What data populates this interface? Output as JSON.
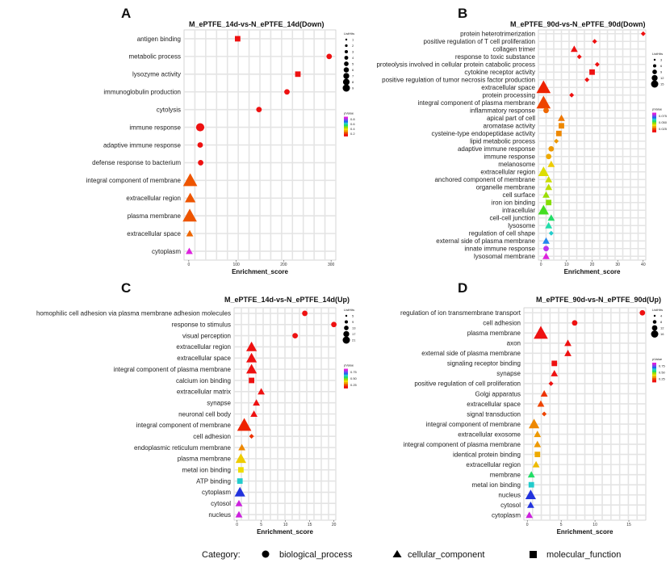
{
  "legend": {
    "category_label": "Category:",
    "items": [
      {
        "name": "biological_process",
        "shape": "circle"
      },
      {
        "name": "cellular_component",
        "shape": "triangle"
      },
      {
        "name": "molecular_function",
        "shape": "square"
      }
    ]
  },
  "chart_data": [
    {
      "panel": "A",
      "type": "scatter",
      "title": "M_ePTFE_14d-vs-N_ePTFE_14d(Down)",
      "xlabel": "Enrichment_score",
      "xlim": [
        -10,
        310
      ],
      "xticks": [
        0,
        100,
        200,
        300
      ],
      "size_title": "ListHits",
      "color_title": "pValue",
      "color_ticks": [
        "0.8",
        "0.6",
        "0.4",
        "0.2"
      ],
      "size_ticks": [
        "1",
        "2",
        "3",
        "4",
        "5",
        "6",
        "7",
        "8",
        "9"
      ],
      "terms": [
        {
          "label": "antigen binding",
          "x": 103,
          "shape": "square",
          "size": 1,
          "color": "#ee1111"
        },
        {
          "label": "metabolic process",
          "x": 296,
          "shape": "circle",
          "size": 1,
          "color": "#ee1111"
        },
        {
          "label": "lysozyme activity",
          "x": 230,
          "shape": "square",
          "size": 1,
          "color": "#ee1111"
        },
        {
          "label": "immunoglobulin production",
          "x": 207,
          "shape": "circle",
          "size": 1,
          "color": "#ee1111"
        },
        {
          "label": "cytolysis",
          "x": 148,
          "shape": "circle",
          "size": 1,
          "color": "#ee1111"
        },
        {
          "label": "immune response",
          "x": 24,
          "shape": "circle",
          "size": 2,
          "color": "#ee1111"
        },
        {
          "label": "adaptive immune response",
          "x": 24,
          "shape": "circle",
          "size": 1,
          "color": "#ee1111"
        },
        {
          "label": "defense response to bacterium",
          "x": 25,
          "shape": "circle",
          "size": 1,
          "color": "#ee1111"
        },
        {
          "label": "integral component of membrane",
          "x": 3,
          "shape": "triangle",
          "size": 3,
          "color": "#ee5500"
        },
        {
          "label": "extracellular region",
          "x": 3,
          "shape": "triangle",
          "size": 2,
          "color": "#ee5500"
        },
        {
          "label": "plasma membrane",
          "x": 2,
          "shape": "triangle",
          "size": 3,
          "color": "#ee5500"
        },
        {
          "label": "extracellular space",
          "x": 2,
          "shape": "triangle",
          "size": 1,
          "color": "#ee6600"
        },
        {
          "label": "cytoplasm",
          "x": 1,
          "shape": "triangle",
          "size": 1,
          "color": "#dd22dd"
        }
      ]
    },
    {
      "panel": "B",
      "type": "scatter",
      "title": "M_ePTFE_90d-vs-N_ePTFE_90d(Down)",
      "xlabel": "Enrichment_score",
      "xlim": [
        -1,
        41
      ],
      "xticks": [
        0,
        10,
        20,
        30,
        40
      ],
      "size_title": "ListHits",
      "color_title": "pValue",
      "color_ticks": [
        "0.075",
        "0.050",
        "0.025"
      ],
      "size_ticks": [
        "3",
        "6",
        "9",
        "12",
        "15"
      ],
      "terms": [
        {
          "label": "protein heterotrimerization",
          "x": 40,
          "shape": "diamond",
          "size": 1,
          "color": "#ee1111"
        },
        {
          "label": "positive regulation of T cell proliferation",
          "x": 21,
          "shape": "diamond",
          "size": 1,
          "color": "#ee1111"
        },
        {
          "label": "collagen trimer",
          "x": 13,
          "shape": "triangle",
          "size": 1,
          "color": "#ee1111"
        },
        {
          "label": "response to toxic substance",
          "x": 15,
          "shape": "diamond",
          "size": 1,
          "color": "#ee1111"
        },
        {
          "label": "proteolysis involved in cellular protein catabolic process",
          "x": 22,
          "shape": "diamond",
          "size": 1,
          "color": "#ee1111"
        },
        {
          "label": "cytokine receptor activity",
          "x": 20,
          "shape": "square",
          "size": 1,
          "color": "#ee1111"
        },
        {
          "label": "positive regulation of tumor necrosis factor production",
          "x": 18,
          "shape": "diamond",
          "size": 1,
          "color": "#ee1111"
        },
        {
          "label": "extracellular space",
          "x": 1,
          "shape": "triangle",
          "size": 3,
          "color": "#ee2200"
        },
        {
          "label": "protein processing",
          "x": 12,
          "shape": "diamond",
          "size": 1,
          "color": "#ee1111"
        },
        {
          "label": "integral component of plasma membrane",
          "x": 1,
          "shape": "triangle",
          "size": 3,
          "color": "#ee4400"
        },
        {
          "label": "inflammatory response",
          "x": 2,
          "shape": "circle",
          "size": 1,
          "color": "#ee6600"
        },
        {
          "label": "apical part of cell",
          "x": 8,
          "shape": "triangle",
          "size": 1,
          "color": "#ee7700"
        },
        {
          "label": "aromatase activity",
          "x": 8,
          "shape": "square",
          "size": 1,
          "color": "#ee8800"
        },
        {
          "label": "cysteine-type endopeptidase activity",
          "x": 7,
          "shape": "square",
          "size": 1,
          "color": "#ee8800"
        },
        {
          "label": "lipid metabolic process",
          "x": 6,
          "shape": "diamond",
          "size": 1,
          "color": "#ee9900"
        },
        {
          "label": "adaptive immune response",
          "x": 4,
          "shape": "circle",
          "size": 1,
          "color": "#ee9900"
        },
        {
          "label": "immune response",
          "x": 3,
          "shape": "circle",
          "size": 1,
          "color": "#eeaa00"
        },
        {
          "label": "melanosome",
          "x": 4,
          "shape": "triangle",
          "size": 1,
          "color": "#eecc00"
        },
        {
          "label": "extracellular region",
          "x": 1,
          "shape": "triangle",
          "size": 2,
          "color": "#dddd00"
        },
        {
          "label": "anchored component of membrane",
          "x": 3,
          "shape": "triangle",
          "size": 1,
          "color": "#ccdd00"
        },
        {
          "label": "organelle membrane",
          "x": 3,
          "shape": "triangle",
          "size": 1,
          "color": "#bbdd00"
        },
        {
          "label": "cell surface",
          "x": 2,
          "shape": "triangle",
          "size": 1,
          "color": "#99dd00"
        },
        {
          "label": "iron ion binding",
          "x": 3,
          "shape": "square",
          "size": 1,
          "color": "#88dd00"
        },
        {
          "label": "intracellular",
          "x": 1,
          "shape": "triangle",
          "size": 2,
          "color": "#44dd22"
        },
        {
          "label": "cell-cell junction",
          "x": 4,
          "shape": "triangle",
          "size": 1,
          "color": "#22dd66"
        },
        {
          "label": "lysosome",
          "x": 3,
          "shape": "triangle",
          "size": 1,
          "color": "#22ddaa"
        },
        {
          "label": "regulation of cell shape",
          "x": 4,
          "shape": "diamond",
          "size": 1,
          "color": "#22cccc"
        },
        {
          "label": "external side of plasma membrane",
          "x": 2,
          "shape": "triangle",
          "size": 1,
          "color": "#2288ee"
        },
        {
          "label": "innate immune response",
          "x": 2,
          "shape": "circle",
          "size": 1,
          "color": "#bb33ee"
        },
        {
          "label": "lysosomal membrane",
          "x": 2,
          "shape": "triangle",
          "size": 1,
          "color": "#dd22dd"
        }
      ]
    },
    {
      "panel": "C",
      "type": "scatter",
      "title": "M_ePTFE_14d-vs-N_ePTFE_14d(Up)",
      "xlabel": "Enrichment_score",
      "xlim": [
        -0.6,
        20.4
      ],
      "xticks": [
        0,
        5,
        10,
        15,
        20
      ],
      "size_title": "ListHits",
      "color_title": "pValue",
      "color_ticks": [
        "0.75",
        "0.50",
        "0.25"
      ],
      "size_ticks": [
        "5",
        "9",
        "13",
        "17",
        "21"
      ],
      "terms": [
        {
          "label": "homophilic cell adhesion via plasma membrane adhesion molecules",
          "x": 14,
          "shape": "circle",
          "size": 1,
          "color": "#ee1111"
        },
        {
          "label": "response to stimulus",
          "x": 20,
          "shape": "circle",
          "size": 1,
          "color": "#ee1111"
        },
        {
          "label": "visual perception",
          "x": 12,
          "shape": "circle",
          "size": 1,
          "color": "#ee1111"
        },
        {
          "label": "extracellular region",
          "x": 3,
          "shape": "triangle",
          "size": 2,
          "color": "#ee1111"
        },
        {
          "label": "extracellular space",
          "x": 3,
          "shape": "triangle",
          "size": 2,
          "color": "#ee1111"
        },
        {
          "label": "integral component of plasma membrane",
          "x": 3,
          "shape": "triangle",
          "size": 2,
          "color": "#ee1111"
        },
        {
          "label": "calcium ion binding",
          "x": 3,
          "shape": "square",
          "size": 1,
          "color": "#ee1111"
        },
        {
          "label": "extracellular matrix",
          "x": 5,
          "shape": "triangle",
          "size": 1,
          "color": "#ee1111"
        },
        {
          "label": "synapse",
          "x": 4,
          "shape": "triangle",
          "size": 1,
          "color": "#ee1111"
        },
        {
          "label": "neuronal cell body",
          "x": 3.5,
          "shape": "triangle",
          "size": 1,
          "color": "#ee1111"
        },
        {
          "label": "integral component of membrane",
          "x": 1.5,
          "shape": "triangle",
          "size": 3,
          "color": "#ee2200"
        },
        {
          "label": "cell adhesion",
          "x": 3,
          "shape": "diamond",
          "size": 1,
          "color": "#ee3300"
        },
        {
          "label": "endoplasmic reticulum membrane",
          "x": 1,
          "shape": "triangle",
          "size": 1,
          "color": "#ee8800"
        },
        {
          "label": "plasma membrane",
          "x": 0.8,
          "shape": "triangle",
          "size": 2,
          "color": "#eecc00"
        },
        {
          "label": "metal ion binding",
          "x": 0.8,
          "shape": "square",
          "size": 1,
          "color": "#eedd00"
        },
        {
          "label": "ATP binding",
          "x": 0.6,
          "shape": "square",
          "size": 1,
          "color": "#22cccc"
        },
        {
          "label": "cytoplasm",
          "x": 0.6,
          "shape": "triangle",
          "size": 2,
          "color": "#2233dd"
        },
        {
          "label": "cytosol",
          "x": 0.4,
          "shape": "triangle",
          "size": 1,
          "color": "#cc22dd"
        },
        {
          "label": "nucleus",
          "x": 0.4,
          "shape": "triangle",
          "size": 1,
          "color": "#cc22dd"
        }
      ]
    },
    {
      "panel": "D",
      "type": "scatter",
      "title": "M_ePTFE_90d-vs-N_ePTFE_90d(Up)",
      "xlabel": "Enrichment_score",
      "xlim": [
        -0.5,
        17.5
      ],
      "xticks": [
        0,
        5,
        10,
        15
      ],
      "size_title": "ListHits",
      "color_title": "pValue",
      "color_ticks": [
        "0.75",
        "0.50",
        "0.25"
      ],
      "size_ticks": [
        "4",
        "8",
        "12",
        "16"
      ],
      "terms": [
        {
          "label": "regulation of ion transmembrane transport",
          "x": 17,
          "shape": "circle",
          "size": 1,
          "color": "#ee1111"
        },
        {
          "label": "cell adhesion",
          "x": 7,
          "shape": "circle",
          "size": 1,
          "color": "#ee1111"
        },
        {
          "label": "plasma membrane",
          "x": 2,
          "shape": "triangle",
          "size": 3,
          "color": "#ee1111"
        },
        {
          "label": "axon",
          "x": 6,
          "shape": "triangle",
          "size": 1,
          "color": "#ee1111"
        },
        {
          "label": "external side of plasma membrane",
          "x": 6,
          "shape": "triangle",
          "size": 1,
          "color": "#ee1111"
        },
        {
          "label": "signaling receptor binding",
          "x": 4,
          "shape": "square",
          "size": 1,
          "color": "#ee1111"
        },
        {
          "label": "synapse",
          "x": 4,
          "shape": "triangle",
          "size": 1,
          "color": "#ee1111"
        },
        {
          "label": "positive regulation of cell proliferation",
          "x": 3.5,
          "shape": "diamond",
          "size": 1,
          "color": "#ee1111"
        },
        {
          "label": "Golgi apparatus",
          "x": 2.5,
          "shape": "triangle",
          "size": 1,
          "color": "#ee3300"
        },
        {
          "label": "extracellular space",
          "x": 2,
          "shape": "triangle",
          "size": 1,
          "color": "#ee4400"
        },
        {
          "label": "signal transduction",
          "x": 2.5,
          "shape": "diamond",
          "size": 1,
          "color": "#ee4400"
        },
        {
          "label": "integral component of membrane",
          "x": 1,
          "shape": "triangle",
          "size": 2,
          "color": "#ee8800"
        },
        {
          "label": "extracellular exosome",
          "x": 1.5,
          "shape": "triangle",
          "size": 1,
          "color": "#ee9900"
        },
        {
          "label": "integral component of plasma membrane",
          "x": 1.5,
          "shape": "triangle",
          "size": 1,
          "color": "#ee9900"
        },
        {
          "label": "identical protein binding",
          "x": 1.5,
          "shape": "square",
          "size": 1,
          "color": "#eeaa00"
        },
        {
          "label": "extracellular region",
          "x": 1.3,
          "shape": "triangle",
          "size": 1,
          "color": "#eebb00"
        },
        {
          "label": "membrane",
          "x": 0.6,
          "shape": "triangle",
          "size": 1,
          "color": "#22dd66"
        },
        {
          "label": "metal ion binding",
          "x": 0.6,
          "shape": "square",
          "size": 1,
          "color": "#22cccc"
        },
        {
          "label": "nucleus",
          "x": 0.5,
          "shape": "triangle",
          "size": 2,
          "color": "#2233dd"
        },
        {
          "label": "cytosol",
          "x": 0.5,
          "shape": "triangle",
          "size": 1,
          "color": "#2233dd"
        },
        {
          "label": "cytoplasm",
          "x": 0.3,
          "shape": "triangle",
          "size": 1,
          "color": "#cc22dd"
        }
      ]
    }
  ]
}
